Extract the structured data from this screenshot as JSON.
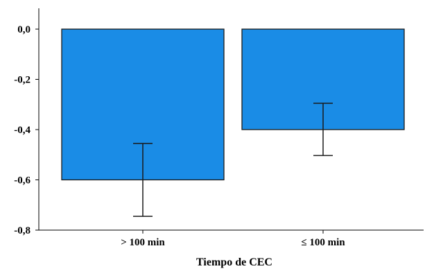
{
  "chart_data": {
    "type": "bar",
    "title": "",
    "xlabel": "Tiempo de CEC",
    "ylabel": "",
    "categories": [
      "> 100 min",
      "≤ 100 min"
    ],
    "values": [
      -0.6,
      -0.4
    ],
    "error_bars": [
      {
        "lower": -0.745,
        "upper": -0.455
      },
      {
        "lower": -0.503,
        "upper": -0.295
      }
    ],
    "ylim": [
      -0.8,
      0.0
    ],
    "yticks": [
      "0,0",
      "-0,2",
      "-0,4",
      "-0,6",
      "-0,8"
    ],
    "grid": false,
    "bar_color": "#1a8ce6",
    "bar_edge_color": "#1a1a1a"
  }
}
